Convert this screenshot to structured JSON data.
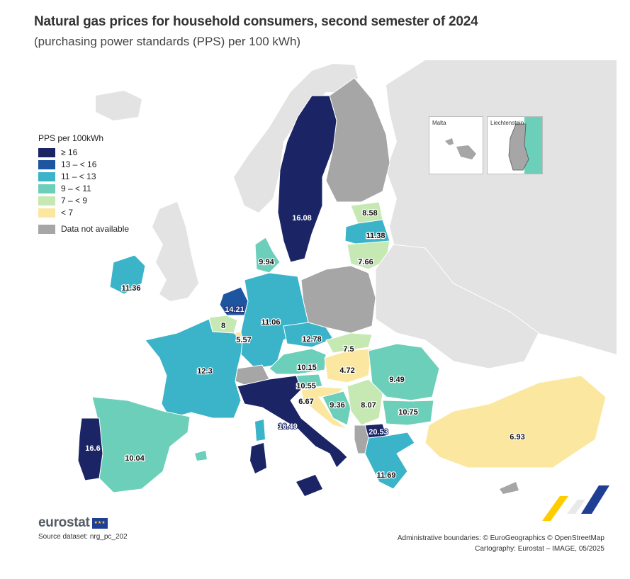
{
  "title": "Natural gas prices for household consumers, second semester of 2024",
  "subtitle": "(purchasing power standards (PPS) per 100 kWh)",
  "legend": {
    "title": "PPS per 100kWh",
    "items": [
      {
        "label": "≥ 16",
        "color": "#1b2566"
      },
      {
        "label": "13 – < 16",
        "color": "#1d55a0"
      },
      {
        "label": "11 – < 13",
        "color": "#3bb3c9"
      },
      {
        "label": "9 – < 11",
        "color": "#6ccfb9"
      },
      {
        "label": "7 – < 9",
        "color": "#c6e8b2"
      },
      {
        "label": "< 7",
        "color": "#fbe79f"
      }
    ],
    "na": {
      "label": "Data not available",
      "color": "#a6a6a6"
    }
  },
  "insets": {
    "malta": "Malta",
    "liechtenstein": "Liechtenstein"
  },
  "country_values": {
    "sweden": "16.08",
    "estonia": "8.58",
    "latvia": "11.38",
    "lithuania": "7.66",
    "denmark": "9.94",
    "ireland": "11.36",
    "netherlands": "14.21",
    "belgium": "8",
    "luxembourg": "5.57",
    "germany": "11.06",
    "czechia": "12.78",
    "slovakia": "7.5",
    "austria": "10.15",
    "hungary": "4.72",
    "slovenia": "10.55",
    "croatia": "6.67",
    "bosnia": "9.36",
    "serbia": "8.07",
    "romania": "9.49",
    "bulgaria": "10.75",
    "north_macedonia": "20.53",
    "greece": "11.69",
    "italy": "16.49",
    "france": "12.3",
    "spain": "10.04",
    "portugal": "16.6",
    "turkey": "6.93"
  },
  "footer": {
    "brand": "eurostat",
    "source": "Source dataset: nrg_pc_202",
    "boundaries": "Administrative boundaries: © EuroGeographics © OpenStreetMap",
    "cartography": "Cartography: Eurostat – IMAGE, 05/2025"
  }
}
